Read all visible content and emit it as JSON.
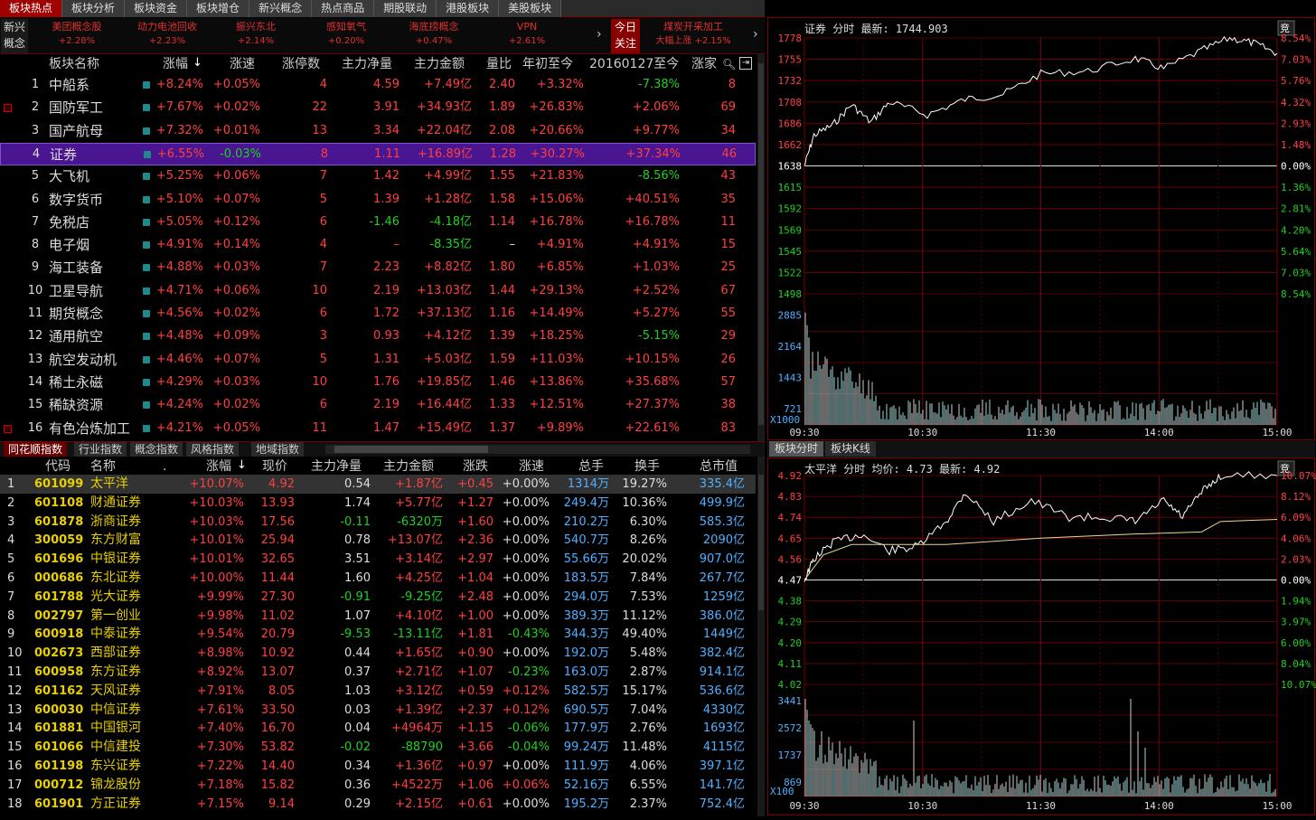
{
  "top_tabs": [
    "板块热点",
    "板块分析",
    "板块资金",
    "板块增仓",
    "新兴概念",
    "热点商品",
    "期股联动",
    "港股板块",
    "美股板块"
  ],
  "concept_bar": {
    "head": [
      "新兴",
      "概念"
    ],
    "items": [
      {
        "name": "美团概念股",
        "pct": "+2.28%"
      },
      {
        "name": "动力电池回收",
        "pct": "+2.23%"
      },
      {
        "name": "振兴东北",
        "pct": "+2.14%"
      },
      {
        "name": "感知氧气",
        "pct": "+0.20%"
      },
      {
        "name": "海底捞概念",
        "pct": "+0.47%"
      },
      {
        "name": "VPN",
        "pct": "+2.61%"
      }
    ],
    "focus": [
      "今日",
      "关注"
    ],
    "focus_item": {
      "name": "煤炭开采加工",
      "sub": "大幅上涨",
      "pct": "+2.15%"
    }
  },
  "sector_table": {
    "headers": [
      "板块名称",
      "涨幅",
      "涨速",
      "涨停数",
      "主力净量",
      "主力金额",
      "量比",
      "年初至今",
      "20160127至今",
      "涨家"
    ],
    "rows": [
      [
        "1",
        "中船系",
        "+8.24%",
        "+0.05%",
        "4",
        "4.59",
        "+7.49亿",
        "2.40",
        "+3.32%",
        "-7.38%",
        "8"
      ],
      [
        "2",
        "国防军工",
        "+7.67%",
        "+0.02%",
        "22",
        "3.91",
        "+34.93亿",
        "1.89",
        "+26.83%",
        "+2.06%",
        "69"
      ],
      [
        "3",
        "国产航母",
        "+7.32%",
        "+0.01%",
        "13",
        "3.34",
        "+22.04亿",
        "2.08",
        "+20.66%",
        "+9.77%",
        "34"
      ],
      [
        "4",
        "证券",
        "+6.55%",
        "-0.03%",
        "8",
        "1.11",
        "+16.89亿",
        "1.28",
        "+30.27%",
        "+37.34%",
        "46"
      ],
      [
        "5",
        "大飞机",
        "+5.25%",
        "+0.06%",
        "7",
        "1.42",
        "+4.99亿",
        "1.55",
        "+21.83%",
        "-8.56%",
        "43"
      ],
      [
        "6",
        "数字货币",
        "+5.10%",
        "+0.07%",
        "5",
        "1.39",
        "+1.28亿",
        "1.58",
        "+15.06%",
        "+40.51%",
        "35"
      ],
      [
        "7",
        "免税店",
        "+5.05%",
        "+0.12%",
        "6",
        "-1.46",
        "-4.18亿",
        "1.14",
        "+16.78%",
        "+16.78%",
        "11"
      ],
      [
        "8",
        "电子烟",
        "+4.91%",
        "+0.14%",
        "4",
        "–",
        "-8.35亿",
        "–",
        "+4.91%",
        "+4.91%",
        "15"
      ],
      [
        "9",
        "海工装备",
        "+4.88%",
        "+0.03%",
        "7",
        "2.23",
        "+8.82亿",
        "1.80",
        "+6.85%",
        "+1.03%",
        "25"
      ],
      [
        "10",
        "卫星导航",
        "+4.71%",
        "+0.06%",
        "10",
        "2.19",
        "+13.03亿",
        "1.44",
        "+29.13%",
        "+2.52%",
        "67"
      ],
      [
        "11",
        "期货概念",
        "+4.56%",
        "+0.02%",
        "6",
        "1.72",
        "+37.13亿",
        "1.16",
        "+14.49%",
        "+5.27%",
        "55"
      ],
      [
        "12",
        "通用航空",
        "+4.48%",
        "+0.09%",
        "3",
        "0.93",
        "+4.12亿",
        "1.39",
        "+18.25%",
        "-5.15%",
        "29"
      ],
      [
        "13",
        "航空发动机",
        "+4.46%",
        "+0.07%",
        "5",
        "1.31",
        "+5.03亿",
        "1.59",
        "+11.03%",
        "+10.15%",
        "26"
      ],
      [
        "14",
        "稀土永磁",
        "+4.29%",
        "+0.03%",
        "10",
        "1.76",
        "+19.85亿",
        "1.46",
        "+13.86%",
        "+35.68%",
        "57"
      ],
      [
        "15",
        "稀缺资源",
        "+4.24%",
        "+0.02%",
        "6",
        "2.19",
        "+16.44亿",
        "1.33",
        "+12.51%",
        "+27.37%",
        "38"
      ],
      [
        "16",
        "有色冶炼加工",
        "+4.21%",
        "+0.05%",
        "11",
        "1.47",
        "+15.49亿",
        "1.37",
        "+9.89%",
        "+22.61%",
        "83"
      ]
    ]
  },
  "mid_tabs": [
    "同花顺指数",
    "行业指数",
    "概念指数",
    "风格指数",
    "地域指数"
  ],
  "stock_table": {
    "headers": [
      "代码",
      "名称",
      ".",
      "涨幅",
      "现价",
      "主力净量",
      "主力金额",
      "涨跌",
      "涨速",
      "总手",
      "换手",
      "总市值"
    ],
    "rows": [
      [
        "1",
        "601099",
        "太平洋",
        "+10.07%",
        "4.92",
        "0.54",
        "+1.87亿",
        "+0.45",
        "+0.00%",
        "1314万",
        "19.27%",
        "335.4亿"
      ],
      [
        "2",
        "601108",
        "财通证券",
        "+10.03%",
        "13.93",
        "1.74",
        "+5.77亿",
        "+1.27",
        "+0.00%",
        "249.4万",
        "10.36%",
        "499.9亿"
      ],
      [
        "3",
        "601878",
        "浙商证券",
        "+10.03%",
        "17.56",
        "-0.11",
        "-6320万",
        "+1.60",
        "+0.00%",
        "210.2万",
        "6.30%",
        "585.3亿"
      ],
      [
        "4",
        "300059",
        "东方财富",
        "+10.01%",
        "25.94",
        "0.78",
        "+13.07亿",
        "+2.36",
        "+0.00%",
        "540.7万",
        "8.26%",
        "2090亿"
      ],
      [
        "5",
        "601696",
        "中银证券",
        "+10.01%",
        "32.65",
        "3.51",
        "+3.14亿",
        "+2.97",
        "+0.00%",
        "55.66万",
        "20.02%",
        "907.0亿"
      ],
      [
        "6",
        "000686",
        "东北证券",
        "+10.00%",
        "11.44",
        "1.60",
        "+4.25亿",
        "+1.04",
        "+0.00%",
        "183.5万",
        "7.84%",
        "267.7亿"
      ],
      [
        "7",
        "601788",
        "光大证券",
        "+9.99%",
        "27.30",
        "-0.91",
        "-9.25亿",
        "+2.48",
        "+0.00%",
        "294.0万",
        "7.53%",
        "1259亿"
      ],
      [
        "8",
        "002797",
        "第一创业",
        "+9.98%",
        "11.02",
        "1.07",
        "+4.10亿",
        "+1.00",
        "+0.00%",
        "389.3万",
        "11.12%",
        "386.0亿"
      ],
      [
        "9",
        "600918",
        "中泰证券",
        "+9.54%",
        "20.79",
        "-9.53",
        "-13.11亿",
        "+1.81",
        "-0.43%",
        "344.3万",
        "49.40%",
        "1449亿"
      ],
      [
        "10",
        "002673",
        "西部证券",
        "+8.98%",
        "10.92",
        "0.44",
        "+1.65亿",
        "+0.90",
        "+0.00%",
        "192.0万",
        "5.48%",
        "382.4亿"
      ],
      [
        "11",
        "600958",
        "东方证券",
        "+8.92%",
        "13.07",
        "0.37",
        "+2.71亿",
        "+1.07",
        "-0.23%",
        "163.0万",
        "2.87%",
        "914.1亿"
      ],
      [
        "12",
        "601162",
        "天风证券",
        "+7.91%",
        "8.05",
        "1.03",
        "+3.12亿",
        "+0.59",
        "+0.12%",
        "582.5万",
        "15.17%",
        "536.6亿"
      ],
      [
        "13",
        "600030",
        "中信证券",
        "+7.61%",
        "33.50",
        "0.03",
        "+1.39亿",
        "+2.37",
        "+0.12%",
        "690.5万",
        "7.04%",
        "4330亿"
      ],
      [
        "14",
        "601881",
        "中国银河",
        "+7.40%",
        "16.70",
        "0.04",
        "+4964万",
        "+1.15",
        "-0.06%",
        "177.9万",
        "2.76%",
        "1693亿"
      ],
      [
        "15",
        "601066",
        "中信建投",
        "+7.30%",
        "53.82",
        "-0.02",
        "-88790",
        "+3.66",
        "-0.04%",
        "99.24万",
        "11.48%",
        "4115亿"
      ],
      [
        "16",
        "601198",
        "东兴证券",
        "+7.22%",
        "14.40",
        "0.34",
        "+1.36亿",
        "+0.97",
        "+0.00%",
        "111.9万",
        "4.06%",
        "397.1亿"
      ],
      [
        "17",
        "000712",
        "锦龙股份",
        "+7.18%",
        "15.82",
        "0.36",
        "+4522万",
        "+1.06",
        "+0.06%",
        "52.16万",
        "6.55%",
        "141.7亿"
      ],
      [
        "18",
        "601901",
        "方正证券",
        "+7.15%",
        "9.14",
        "0.29",
        "+2.15亿",
        "+0.61",
        "+0.00%",
        "195.2万",
        "2.37%",
        "752.4亿"
      ]
    ]
  },
  "chart_top": {
    "title": "证券 分时 最新: 1744.903",
    "badge": "竞",
    "y_left": [
      "1778",
      "1755",
      "1732",
      "1708",
      "1686",
      "1662",
      "1638",
      "1615",
      "1592",
      "1569",
      "1545",
      "1522",
      "1498"
    ],
    "y_right": [
      "8.54%",
      "7.03%",
      "5.76%",
      "4.32%",
      "2.93%",
      "1.48%",
      "0.00%",
      "1.36%",
      "2.81%",
      "4.20%",
      "5.64%",
      "7.03%",
      "8.54%"
    ],
    "vol_left": [
      "2885",
      "2164",
      "1443",
      "721"
    ],
    "vol_unit": "X1000",
    "x": [
      "09:30",
      "10:30",
      "11:30",
      "14:00",
      "15:00"
    ]
  },
  "right_tabs": [
    "板块分时",
    "板块K线"
  ],
  "chart_bottom": {
    "title": "太平洋 分时 均价: 4.73 最新: 4.92",
    "badge": "竞",
    "y_left": [
      "4.92",
      "4.83",
      "4.74",
      "4.65",
      "4.56",
      "4.47",
      "4.38",
      "4.29",
      "4.20",
      "4.11",
      "4.02"
    ],
    "y_right": [
      "10.07%",
      "8.12%",
      "6.09%",
      "4.06%",
      "2.03%",
      "0.00%",
      "1.94%",
      "3.97%",
      "6.00%",
      "8.04%",
      "10.07%"
    ],
    "vol_left": [
      "3441",
      "2572",
      "1737",
      "869"
    ],
    "vol_unit": "X100",
    "x": [
      "09:30",
      "10:30",
      "11:30",
      "14:00",
      "15:00"
    ]
  }
}
